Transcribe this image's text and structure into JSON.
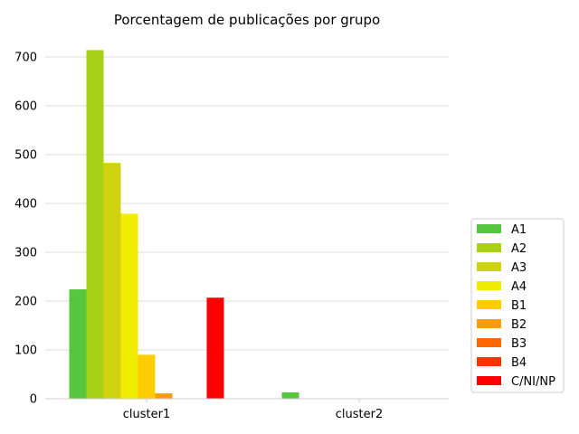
{
  "chart_data": {
    "type": "bar",
    "title": "Porcentagem de publicações por grupo",
    "xlabel": "",
    "ylabel": "",
    "categories": [
      "cluster1",
      "cluster2"
    ],
    "ylim": [
      0,
      750
    ],
    "yticks": [
      0,
      100,
      200,
      300,
      400,
      500,
      600,
      700
    ],
    "grid": "y",
    "legend_position": "right",
    "series": [
      {
        "name": "A1",
        "color": "#55c63e",
        "values": [
          224,
          13
        ]
      },
      {
        "name": "A2",
        "color": "#a8d116",
        "values": [
          714,
          0
        ]
      },
      {
        "name": "A3",
        "color": "#cfd20e",
        "values": [
          483,
          0
        ]
      },
      {
        "name": "A4",
        "color": "#f1ed00",
        "values": [
          379,
          0
        ]
      },
      {
        "name": "B1",
        "color": "#ffcc00",
        "values": [
          90,
          0
        ]
      },
      {
        "name": "B2",
        "color": "#fb9c08",
        "values": [
          11,
          0
        ]
      },
      {
        "name": "B3",
        "color": "#ff6600",
        "values": [
          0,
          0
        ]
      },
      {
        "name": "B4",
        "color": "#ff3300",
        "values": [
          0,
          0
        ]
      },
      {
        "name": "C/NI/NP",
        "color": "#ff0000",
        "values": [
          207,
          0
        ]
      }
    ]
  }
}
